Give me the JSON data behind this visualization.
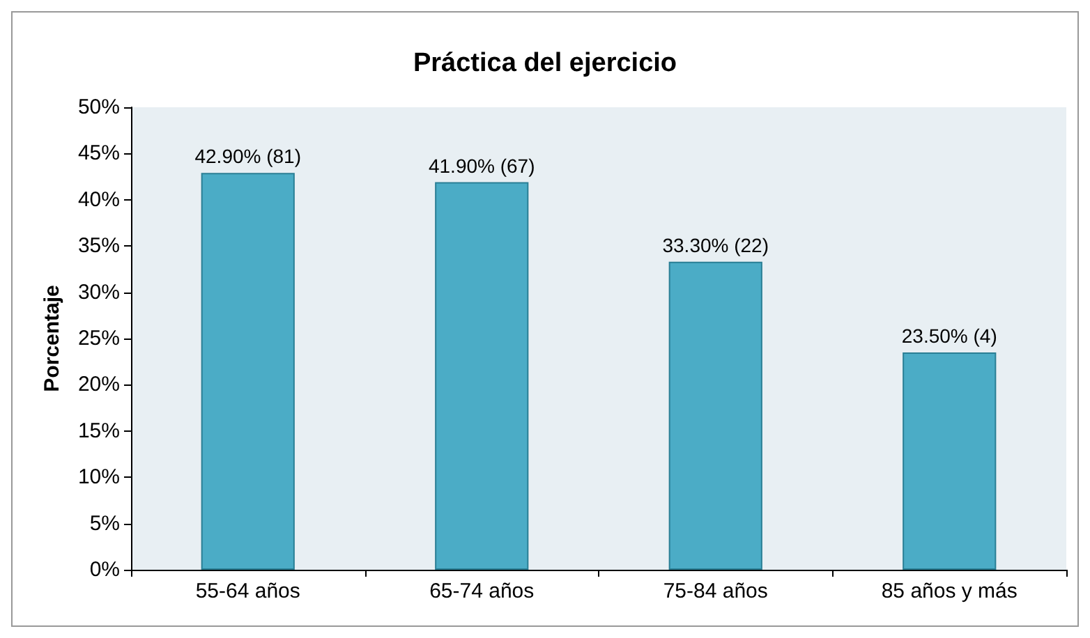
{
  "chart_data": {
    "type": "bar",
    "title": "Práctica del ejercicio",
    "ylabel": "Porcentaje",
    "categories": [
      "55-64 años",
      "65-74 años",
      "75-84 años",
      "85 años y más"
    ],
    "values": [
      42.9,
      41.9,
      33.3,
      23.5
    ],
    "value_labels": [
      "42.90% (81)",
      "41.90% (67)",
      "33.30% (22)",
      "23.50% (4)"
    ],
    "color": "#4bacc6",
    "ylim": [
      0,
      50
    ],
    "yticks": [
      {
        "value": 0,
        "label": "0%"
      },
      {
        "value": 5,
        "label": "5%"
      },
      {
        "value": 10,
        "label": "10%"
      },
      {
        "value": 15,
        "label": "15%"
      },
      {
        "value": 20,
        "label": "20%"
      },
      {
        "value": 25,
        "label": "25%"
      },
      {
        "value": 30,
        "label": "30%"
      },
      {
        "value": 35,
        "label": "35%"
      },
      {
        "value": 40,
        "label": "40%"
      },
      {
        "value": 45,
        "label": "45%"
      },
      {
        "value": 50,
        "label": "50%"
      }
    ],
    "grid": false
  }
}
